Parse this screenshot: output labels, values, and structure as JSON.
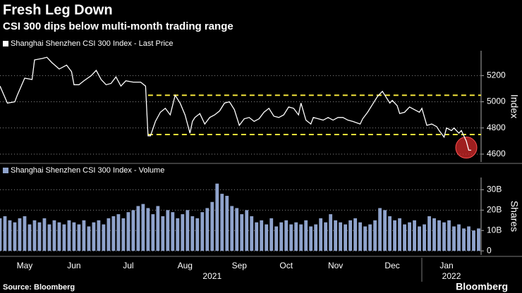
{
  "header": {
    "title": "Fresh Leg Down",
    "subtitle": "CSI 300 dips below multi-month trading range"
  },
  "chart_data": [
    {
      "type": "line",
      "axis_label": "Index",
      "series": [
        {
          "name": "Shanghai Shenzhen CSI 300 Index - Last Price",
          "color": "#ffffff",
          "x": [
            0,
            3,
            6,
            7,
            10,
            13,
            14,
            17,
            19,
            21,
            24,
            27,
            29,
            30,
            32,
            34,
            37,
            39,
            41,
            43,
            45,
            47,
            49,
            51,
            54,
            57,
            59,
            60,
            61,
            63,
            65,
            67,
            69,
            71,
            73,
            75,
            77,
            78,
            79,
            81,
            83,
            85,
            87,
            89,
            91,
            93,
            95,
            97,
            99,
            101,
            103,
            105,
            107,
            109,
            111,
            113,
            115,
            117,
            119,
            121,
            122,
            124,
            126,
            127,
            129,
            131,
            133,
            135,
            137,
            139,
            141,
            143,
            146,
            147,
            149,
            151,
            153,
            155,
            156,
            158,
            159,
            161,
            162,
            164,
            166,
            168,
            170,
            171,
            173,
            175,
            177,
            178,
            180,
            181,
            183,
            184,
            186,
            187,
            189,
            190,
            191
          ],
          "values": [
            5120,
            4990,
            5000,
            5050,
            5180,
            5170,
            5320,
            5330,
            5340,
            5300,
            5250,
            5280,
            5230,
            5130,
            5130,
            5160,
            5200,
            5240,
            5170,
            5130,
            5140,
            5190,
            5120,
            5160,
            5150,
            5150,
            5120,
            4740,
            4740,
            4850,
            4920,
            4950,
            4900,
            5050,
            4990,
            4900,
            4760,
            4850,
            4880,
            4910,
            4830,
            4880,
            4900,
            4930,
            4990,
            5000,
            4940,
            4820,
            4870,
            4880,
            4850,
            4870,
            4920,
            4950,
            4890,
            4880,
            4900,
            4960,
            4950,
            4900,
            4990,
            4860,
            4830,
            4880,
            4870,
            4860,
            4880,
            4860,
            4880,
            4880,
            4860,
            4850,
            4830,
            4870,
            4920,
            4980,
            5040,
            5080,
            5050,
            4990,
            5010,
            4970,
            4910,
            4920,
            4960,
            4940,
            4920,
            4950,
            4820,
            4830,
            4810,
            4780,
            4730,
            4800,
            4780,
            4800,
            4760,
            4780,
            4700,
            4630,
            4630
          ]
        }
      ],
      "xlim": [
        0,
        195
      ],
      "ylim": [
        4540,
        5390
      ],
      "yticks": [
        4600,
        4800,
        5000,
        5200
      ],
      "grid": true,
      "reference_lines": [
        {
          "value": 5050,
          "start": 60,
          "color": "#f2e33a"
        },
        {
          "value": 4750,
          "start": 60,
          "color": "#f2e33a"
        }
      ],
      "highlight": {
        "x": 189,
        "y": 4650,
        "color": "#d42a2a"
      }
    },
    {
      "type": "bar",
      "axis_label": "Shares",
      "series": [
        {
          "name": "Shanghai Shenzhen CSI 300 Index - Volume",
          "color": "#8fa3cc",
          "x": [
            0,
            2,
            4,
            6,
            8,
            10,
            12,
            14,
            16,
            18,
            20,
            22,
            24,
            26,
            28,
            30,
            32,
            34,
            36,
            38,
            40,
            42,
            44,
            46,
            48,
            50,
            52,
            54,
            56,
            58,
            60,
            62,
            64,
            66,
            68,
            70,
            72,
            74,
            76,
            78,
            80,
            82,
            84,
            86,
            88,
            90,
            92,
            94,
            96,
            98,
            100,
            102,
            104,
            106,
            108,
            110,
            112,
            114,
            116,
            118,
            120,
            122,
            124,
            126,
            128,
            130,
            132,
            134,
            136,
            138,
            140,
            142,
            144,
            146,
            148,
            150,
            152,
            154,
            156,
            158,
            160,
            162,
            164,
            166,
            168,
            170,
            172,
            174,
            176,
            178,
            180,
            182,
            184,
            186,
            188,
            190,
            192,
            194
          ],
          "values": [
            16,
            17,
            15,
            14,
            16,
            17,
            13,
            15,
            14,
            16,
            13,
            15,
            14,
            13,
            15,
            14,
            13,
            15,
            12,
            14,
            15,
            13,
            16,
            17,
            18,
            16,
            19,
            20,
            22,
            23,
            21,
            18,
            22,
            17,
            20,
            19,
            16,
            18,
            20,
            17,
            16,
            19,
            21,
            24,
            33,
            28,
            27,
            22,
            21,
            18,
            20,
            17,
            14,
            15,
            13,
            16,
            12,
            14,
            15,
            13,
            14,
            13,
            15,
            12,
            13,
            16,
            14,
            18,
            15,
            14,
            13,
            15,
            16,
            14,
            12,
            13,
            15,
            21,
            20,
            17,
            15,
            16,
            13,
            14,
            15,
            12,
            13,
            17,
            16,
            15,
            14,
            15,
            12,
            13,
            11,
            12,
            10,
            11
          ]
        }
      ],
      "xlim": [
        0,
        195
      ],
      "ylim": [
        -2,
        36
      ],
      "yticks": [
        0,
        {
          "value": 10,
          "label": "10B"
        },
        {
          "value": 20,
          "label": "20B"
        },
        {
          "value": 30,
          "label": "30B"
        }
      ],
      "grid": true,
      "xticks": [
        {
          "value": 10,
          "label": "May"
        },
        {
          "value": 30,
          "label": "Jun"
        },
        {
          "value": 52,
          "label": "Jul"
        },
        {
          "value": 75,
          "label": "Aug"
        },
        {
          "value": 97,
          "label": "Sep"
        },
        {
          "value": 116,
          "label": "Oct"
        },
        {
          "value": 136,
          "label": "Nov"
        },
        {
          "value": 159,
          "label": "Dec"
        },
        {
          "value": 181,
          "label": "Jan"
        }
      ],
      "year_labels": [
        {
          "value": 86,
          "label": "2021"
        },
        {
          "value": 183,
          "label": "2022"
        }
      ]
    }
  ],
  "footer": {
    "source": "Source: Bloomberg",
    "brand": "Bloomberg"
  }
}
